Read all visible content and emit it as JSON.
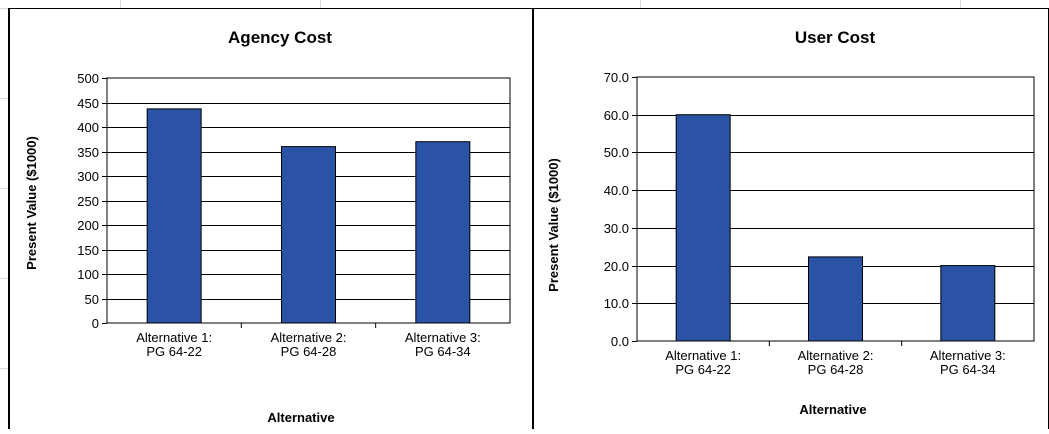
{
  "colors": {
    "bar": "#2a52a5",
    "bar_stroke": "#000000",
    "grid": "#000000",
    "sheet_grid": "#d9d9d9"
  },
  "chart_data": [
    {
      "type": "bar",
      "title": "Agency Cost",
      "xlabel": "Alternative",
      "ylabel": "Present Value ($1000)",
      "categories": [
        [
          "Alternative 1:",
          "PG 64-22"
        ],
        [
          "Alternative 2:",
          "PG 64-28"
        ],
        [
          "Alternative 3:",
          "PG 64-34"
        ]
      ],
      "values": [
        437,
        360,
        370
      ],
      "ylim": [
        0,
        500
      ],
      "ystep": 50,
      "tick_decimals": 0,
      "grid": true
    },
    {
      "type": "bar",
      "title": "User Cost",
      "xlabel": "Alternative",
      "ylabel": "Present Value ($1000)",
      "categories": [
        [
          "Alternative 1:",
          "PG 64-22"
        ],
        [
          "Alternative 2:",
          "PG 64-28"
        ],
        [
          "Alternative 3:",
          "PG 64-34"
        ]
      ],
      "values": [
        60.0,
        22.3,
        20.0
      ],
      "ylim": [
        0,
        70
      ],
      "ystep": 10,
      "tick_decimals": 1,
      "grid": true
    }
  ]
}
